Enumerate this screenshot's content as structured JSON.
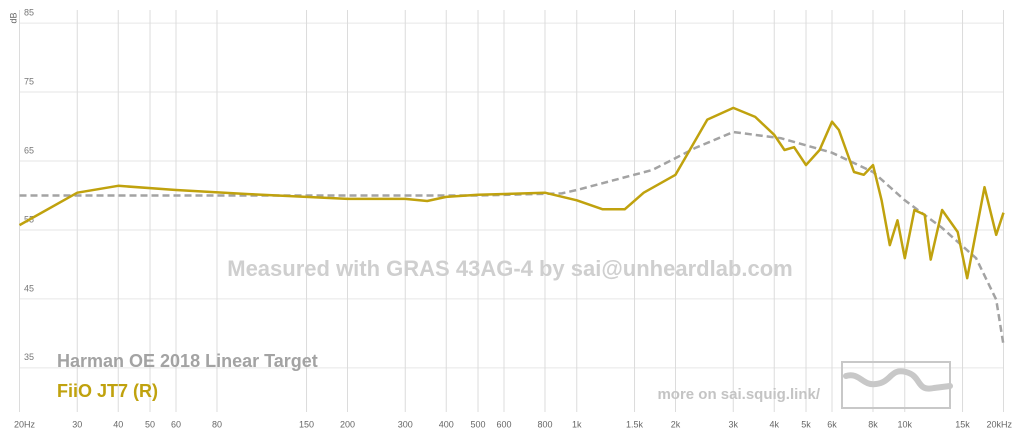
{
  "chart_data": {
    "type": "line",
    "watermark": "Measured with GRAS 43AG-4 by sai@unheardlab.com",
    "y_label": "dB",
    "footer": "more on sai.squig.link/",
    "x_scale": "log",
    "xlim": [
      20,
      20000
    ],
    "ylim": [
      28.6,
      86.9
    ],
    "xticks": [
      {
        "value": 20,
        "label": "20Hz"
      },
      30,
      40,
      50,
      60,
      80,
      150,
      200,
      300,
      400,
      500,
      600,
      800,
      {
        "value": 1000,
        "label": "1k"
      },
      {
        "value": 1500,
        "label": "1.5k"
      },
      {
        "value": 2000,
        "label": "2k"
      },
      {
        "value": 3000,
        "label": "3k"
      },
      {
        "value": 4000,
        "label": "4k"
      },
      {
        "value": 5000,
        "label": "5k"
      },
      {
        "value": 6000,
        "label": "6k"
      },
      {
        "value": 8000,
        "label": "8k"
      },
      {
        "value": 10000,
        "label": "10k"
      },
      {
        "value": 15000,
        "label": "15k"
      },
      {
        "value": 20000,
        "label": "20kHz"
      }
    ],
    "yticks": [
      35,
      45,
      55,
      65,
      75,
      85
    ],
    "grid": true,
    "series": [
      {
        "name": "Harman OE 2018 Linear Target",
        "color": "#a3a3a3",
        "dash": true,
        "x": [
          20,
          100,
          500,
          900,
          1000,
          1700,
          2300,
          3000,
          4200,
          6000,
          8000,
          10000,
          13000,
          16500,
          19000,
          20000
        ],
        "values": [
          60,
          60,
          60,
          60.3,
          60.8,
          63.7,
          66.9,
          69.2,
          68.3,
          66.2,
          63.4,
          59.3,
          55.3,
          50.9,
          44.9,
          38.3
        ]
      },
      {
        "name": "FiiO JT7 (R)",
        "color": "#c0a20e",
        "dash": false,
        "x": [
          20,
          30,
          40,
          60,
          100,
          200,
          300,
          350,
          400,
          500,
          800,
          1000,
          1200,
          1400,
          1600,
          2000,
          2500,
          3000,
          3500,
          4000,
          4300,
          4600,
          5000,
          5500,
          6000,
          6300,
          7000,
          7500,
          8000,
          8500,
          9000,
          9500,
          10000,
          10700,
          11500,
          12000,
          13000,
          14500,
          15500,
          17500,
          19000,
          20000
        ],
        "values": [
          55.7,
          60.4,
          61.4,
          60.8,
          60.2,
          59.5,
          59.5,
          59.2,
          59.8,
          60.1,
          60.4,
          59.3,
          58,
          58,
          60.4,
          63,
          71,
          72.7,
          71.4,
          68.8,
          66.6,
          67,
          64.4,
          66.6,
          70.7,
          69.5,
          63.4,
          63,
          64.4,
          59.3,
          52.8,
          56.4,
          50.9,
          57.9,
          57.2,
          50.7,
          57.9,
          54.7,
          48,
          61.2,
          54.3,
          57.5
        ]
      }
    ]
  }
}
